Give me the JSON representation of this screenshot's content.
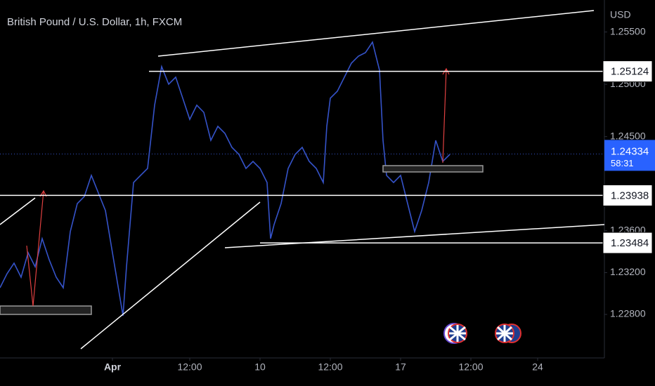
{
  "chart_data": {
    "type": "line",
    "title": "British Pound / U.S. Dollar, 1h, FXCM",
    "y_axis_label": "USD",
    "color": "#3553c9",
    "x": [
      0,
      2,
      4,
      6,
      8,
      10,
      12,
      14,
      16,
      18,
      20,
      22,
      24,
      26,
      28,
      30,
      32,
      34,
      35,
      36,
      38,
      40,
      42,
      44,
      46,
      48,
      50,
      52,
      54,
      56,
      58,
      60,
      62,
      64,
      66,
      68,
      70,
      72,
      74,
      76,
      77,
      78,
      80,
      82,
      84,
      86,
      88,
      90,
      92,
      93,
      94,
      96,
      98,
      100,
      102,
      104,
      106,
      108,
      109,
      110,
      112,
      114,
      116,
      118,
      120,
      122,
      124,
      126,
      128
    ],
    "values": [
      1.23055,
      1.23189,
      1.2329,
      1.23156,
      1.2339,
      1.23256,
      1.23525,
      1.23323,
      1.23156,
      1.23055,
      1.23592,
      1.2386,
      1.23927,
      1.24129,
      1.23961,
      1.23793,
      1.2339,
      1.22988,
      1.22787,
      1.23256,
      1.24061,
      1.24129,
      1.24196,
      1.248,
      1.25169,
      1.25001,
      1.25068,
      1.24867,
      1.24665,
      1.248,
      1.24732,
      1.24464,
      1.24598,
      1.24531,
      1.24397,
      1.2433,
      1.24196,
      1.24263,
      1.24196,
      1.24061,
      1.23525,
      1.23659,
      1.2386,
      1.24196,
      1.2433,
      1.24397,
      1.24263,
      1.24196,
      1.24061,
      1.24598,
      1.24867,
      1.24934,
      1.25068,
      1.25202,
      1.25269,
      1.25303,
      1.25403,
      1.25135,
      1.24464,
      1.24129,
      1.24061,
      1.24129,
      1.2386,
      1.23592,
      1.23793,
      1.24061,
      1.24464,
      1.24263,
      1.2433
    ],
    "xlim": [
      0,
      172
    ],
    "xticks": [
      {
        "value": 32,
        "label": "Apr"
      },
      {
        "value": 54,
        "label": "12:00"
      },
      {
        "value": 74,
        "label": "10"
      },
      {
        "value": 94,
        "label": "12:00"
      },
      {
        "value": 114,
        "label": "17"
      },
      {
        "value": 134,
        "label": "12:00"
      },
      {
        "value": 153,
        "label": "24"
      }
    ],
    "ylim": [
      1.22317,
      1.25806
    ],
    "yticks": [
      {
        "value": 1.228,
        "label": "1.22800"
      },
      {
        "value": 1.232,
        "label": "1.23200"
      },
      {
        "value": 1.236,
        "label": "1.23600"
      },
      {
        "value": 1.245,
        "label": "1.24500"
      },
      {
        "value": 1.25,
        "label": "1.25000"
      },
      {
        "value": 1.255,
        "label": "1.25500"
      }
    ],
    "levels": [
      1.25124,
      1.23938,
      1.23484
    ],
    "last_price": 1.24334,
    "countdown": "58:31",
    "grid": false
  }
}
